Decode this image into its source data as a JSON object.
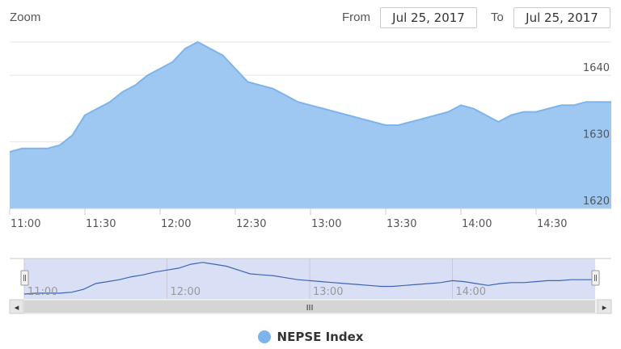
{
  "zoom": {
    "label": "Zoom"
  },
  "range_selector": {
    "from_label": "From",
    "from_value": "Jul 25, 2017",
    "to_label": "To",
    "to_value": "Jul 25, 2017"
  },
  "colors": {
    "area_fill": "#9ec8f1",
    "area_line": "#7db4ec",
    "navigator_line": "#3f64b5",
    "navigator_mask": "rgba(170,185,230,0.45)",
    "legend_marker": "#7db4ec"
  },
  "navigator": {
    "scrollbar_grip": "III",
    "left_arrow": "◂",
    "right_arrow": "▸",
    "handle_glyph": "||"
  },
  "legend": {
    "series_name": "NEPSE Index"
  },
  "chart_data": {
    "type": "area",
    "title": "",
    "xlabel": "",
    "ylabel": "",
    "x_range": [
      "11:00",
      "15:00"
    ],
    "ylim": [
      1620,
      1645
    ],
    "y_ticks": [
      1620,
      1630,
      1640
    ],
    "x_ticks": [
      "11:00",
      "11:30",
      "12:00",
      "12:30",
      "13:00",
      "13:30",
      "14:00",
      "14:30"
    ],
    "navigator_ticks": [
      "11:00",
      "12:00",
      "13:00",
      "14:00"
    ],
    "grid": true,
    "legend_position": "bottom-center",
    "series": [
      {
        "name": "NEPSE Index",
        "x": [
          "11:00",
          "11:05",
          "11:10",
          "11:15",
          "11:20",
          "11:25",
          "11:30",
          "11:35",
          "11:40",
          "11:45",
          "11:50",
          "11:55",
          "12:00",
          "12:05",
          "12:10",
          "12:15",
          "12:20",
          "12:25",
          "12:30",
          "12:35",
          "12:40",
          "12:45",
          "12:50",
          "12:55",
          "13:00",
          "13:05",
          "13:10",
          "13:15",
          "13:20",
          "13:25",
          "13:30",
          "13:35",
          "13:40",
          "13:45",
          "13:50",
          "13:55",
          "14:00",
          "14:05",
          "14:10",
          "14:15",
          "14:20",
          "14:25",
          "14:30",
          "14:35",
          "14:40",
          "14:45",
          "14:50",
          "14:55",
          "15:00"
        ],
        "values": [
          1628.5,
          1629,
          1629,
          1629,
          1629.5,
          1631,
          1634,
          1635,
          1636,
          1637.5,
          1638.5,
          1640,
          1641,
          1642,
          1644,
          1645,
          1644,
          1643,
          1641,
          1639,
          1638.5,
          1638,
          1637,
          1636,
          1635.5,
          1635,
          1634.5,
          1634,
          1633.5,
          1633,
          1632.5,
          1632.5,
          1633,
          1633.5,
          1634,
          1634.5,
          1635.5,
          1635,
          1634,
          1633,
          1634,
          1634.5,
          1634.5,
          1635,
          1635.5,
          1635.5,
          1636,
          1636,
          1636
        ]
      }
    ]
  }
}
